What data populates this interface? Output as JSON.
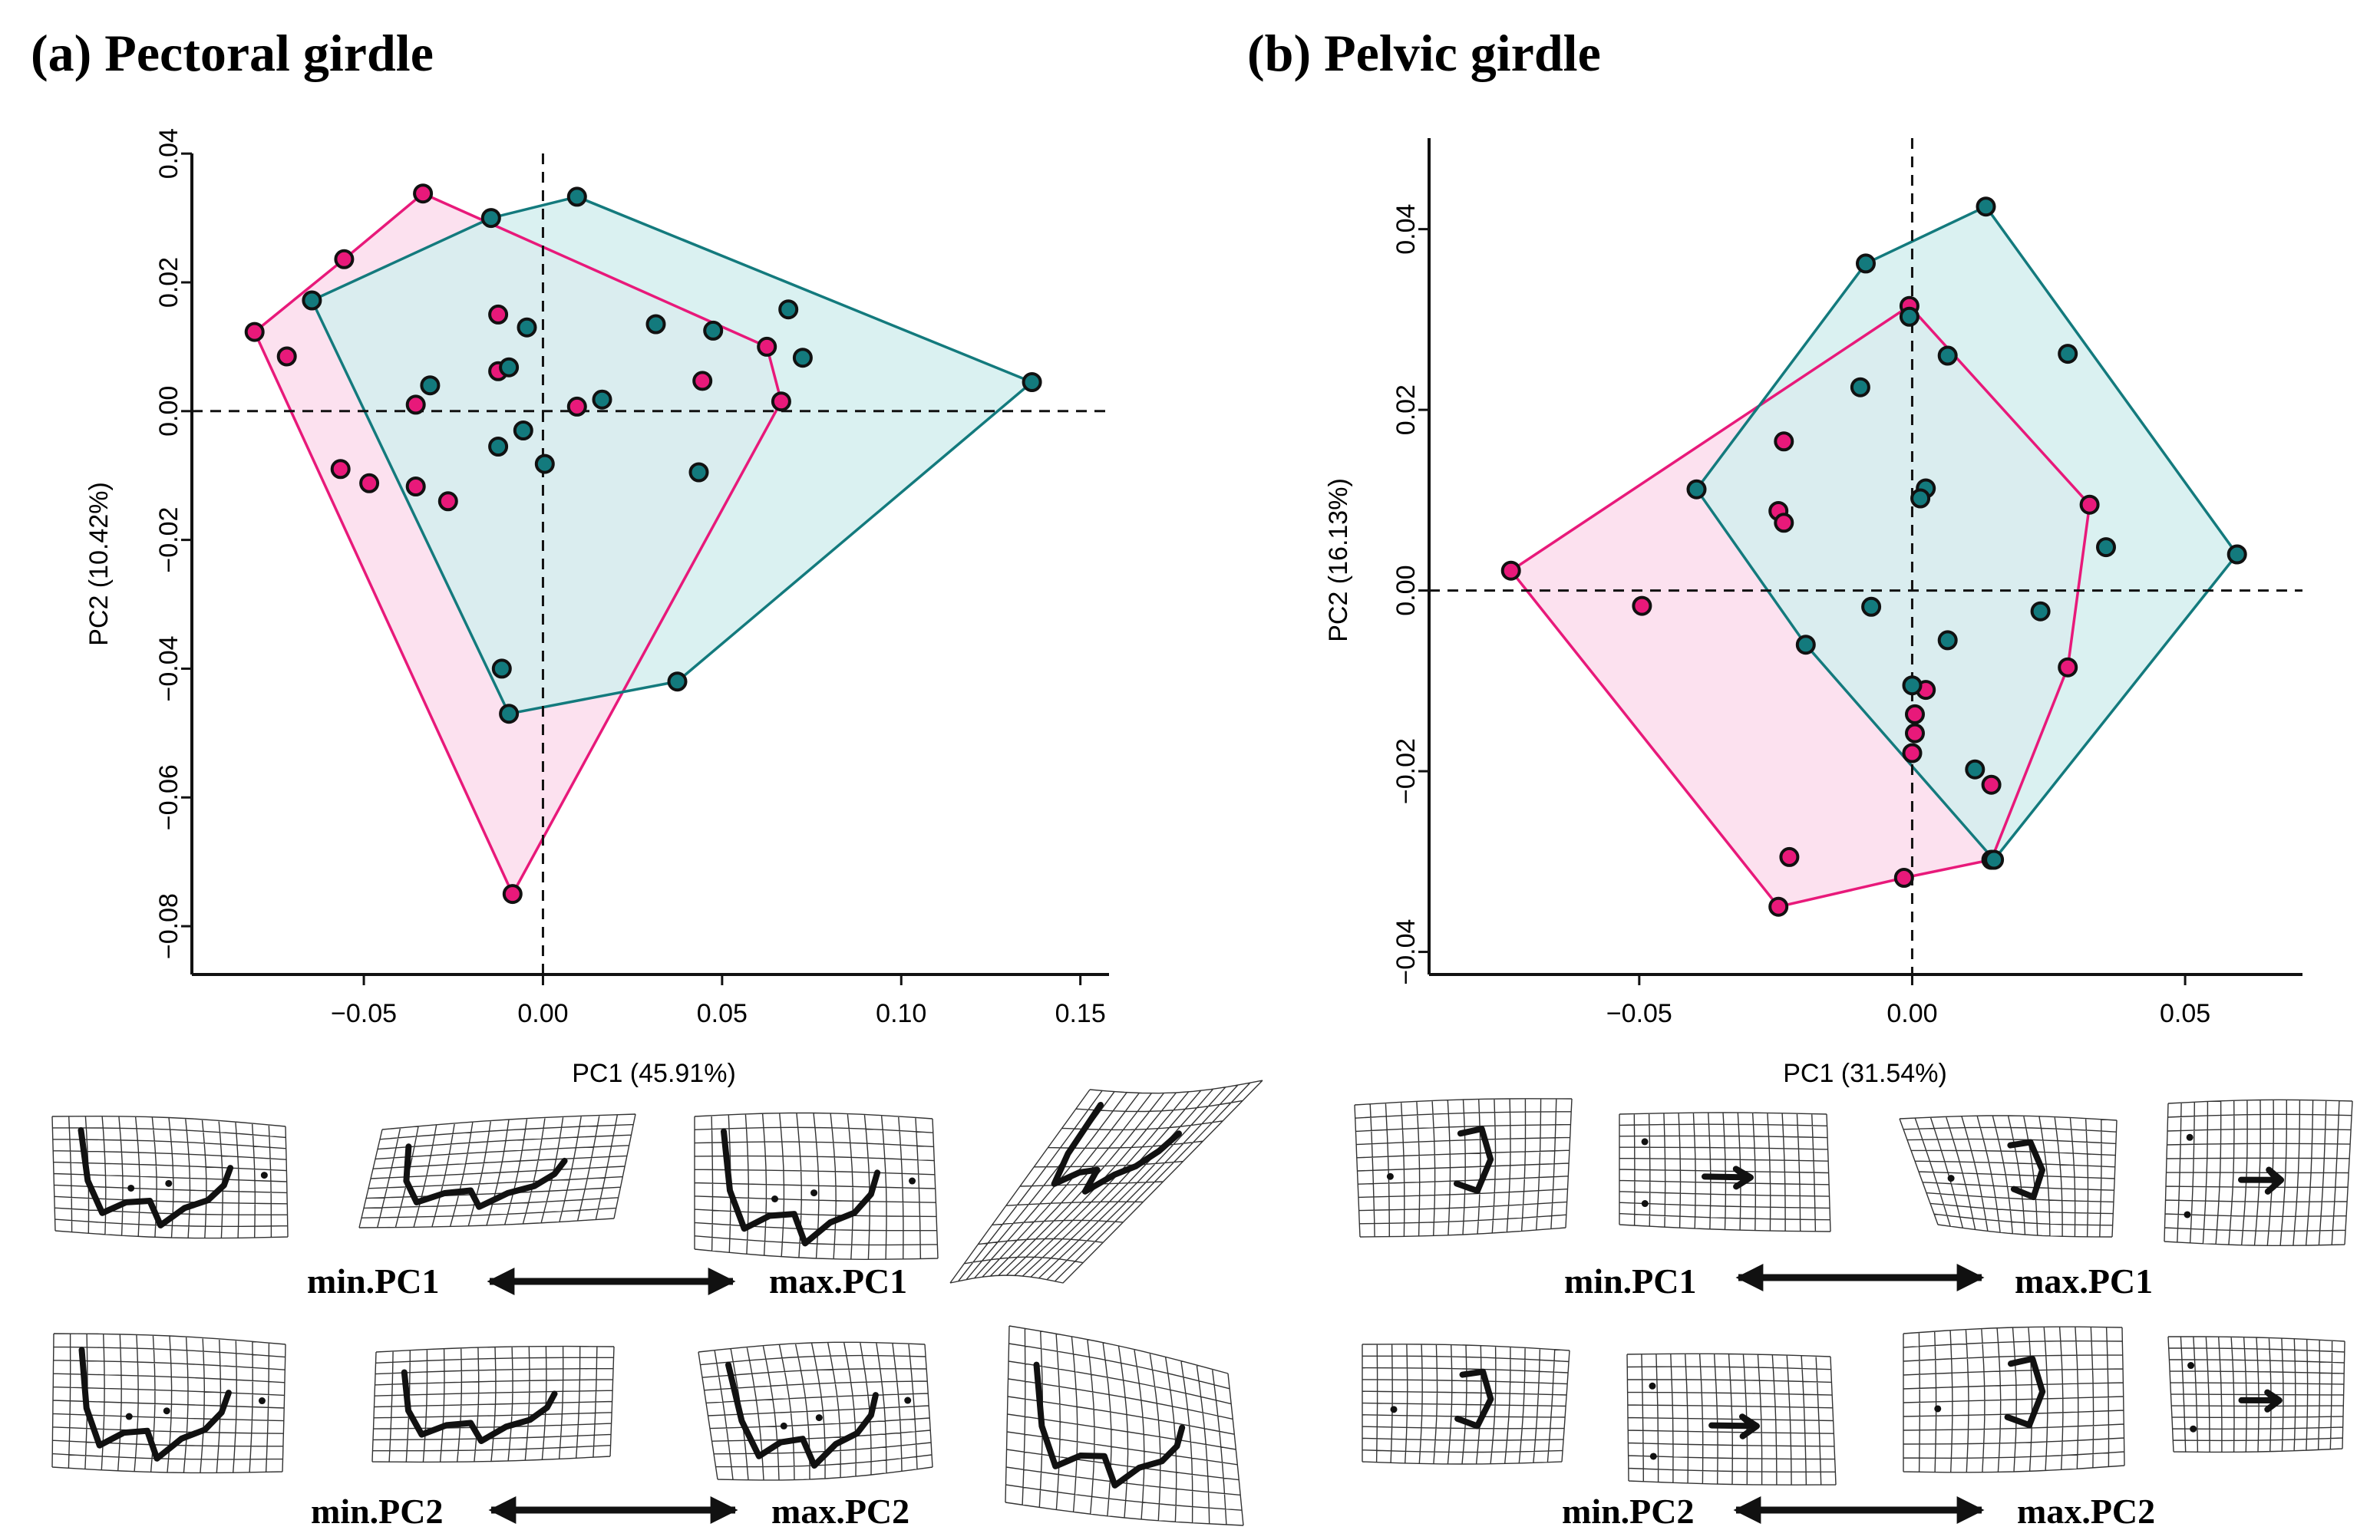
{
  "figure": {
    "bg": "#ffffff"
  },
  "colors": {
    "groupA_stroke": "#e8197a",
    "groupA_fill": "#fbdcec",
    "groupB_stroke": "#137a7d",
    "groupB_fill": "#d4efee",
    "point_outline": "#111111"
  },
  "chart_data": [
    {
      "id": "pectoral",
      "type": "scatter",
      "title": "(a) Pectoral girdle",
      "xlabel": "PC1 (45.91%)",
      "ylabel": "PC2 (10.42%)",
      "xlim": [
        -0.098,
        0.158
      ],
      "ylim": [
        -0.0875,
        0.043
      ],
      "xticks": [
        -0.05,
        0.0,
        0.05,
        0.1,
        0.15
      ],
      "xtick_labels": [
        "−0.05",
        "0.00",
        "0.05",
        "0.10",
        "0.15"
      ],
      "yticks": [
        -0.08,
        -0.06,
        -0.04,
        -0.02,
        0.0,
        0.02,
        0.04
      ],
      "ytick_labels": [
        "−0.08",
        "−0.06",
        "−0.04",
        "−0.02",
        "0.00",
        "0.02",
        "0.04"
      ],
      "grid": false,
      "reference_lines": {
        "x": 0,
        "y": 0,
        "style": "dashed"
      },
      "series": [
        {
          "name": "pink",
          "color": "#e8197a",
          "points": [
            [
              -0.0805,
              0.0123
            ],
            [
              -0.0715,
              0.0085
            ],
            [
              -0.0555,
              0.0236
            ],
            [
              -0.0335,
              0.0338
            ],
            [
              -0.0565,
              -0.009
            ],
            [
              -0.0485,
              -0.0112
            ],
            [
              -0.0355,
              0.001
            ],
            [
              -0.0355,
              -0.0117
            ],
            [
              -0.0265,
              -0.014
            ],
            [
              -0.0125,
              0.015
            ],
            [
              -0.0125,
              0.0062
            ],
            [
              0.0095,
              0.0007
            ],
            [
              0.0445,
              0.0047
            ],
            [
              0.0625,
              0.01
            ],
            [
              0.0665,
              0.0015
            ],
            [
              -0.0085,
              -0.075
            ]
          ],
          "hull": [
            [
              -0.0805,
              0.0123
            ],
            [
              -0.0555,
              0.0236
            ],
            [
              -0.0335,
              0.0338
            ],
            [
              0.0625,
              0.01
            ],
            [
              0.0665,
              0.0015
            ],
            [
              -0.0085,
              -0.075
            ]
          ]
        },
        {
          "name": "teal",
          "color": "#137a7d",
          "points": [
            [
              -0.0645,
              0.0172
            ],
            [
              -0.0145,
              0.03
            ],
            [
              0.0095,
              0.0333
            ],
            [
              -0.0045,
              0.013
            ],
            [
              -0.0095,
              0.0068
            ],
            [
              -0.0315,
              0.004
            ],
            [
              0.0165,
              0.0018
            ],
            [
              0.0315,
              0.0135
            ],
            [
              0.0475,
              0.0125
            ],
            [
              0.0685,
              0.0158
            ],
            [
              0.0725,
              0.0083
            ],
            [
              0.1365,
              0.0045
            ],
            [
              -0.0055,
              -0.003
            ],
            [
              -0.0125,
              -0.0055
            ],
            [
              0.0005,
              -0.0082
            ],
            [
              0.0435,
              -0.0095
            ],
            [
              -0.0115,
              -0.04
            ],
            [
              0.0375,
              -0.042
            ],
            [
              -0.0095,
              -0.047
            ]
          ],
          "hull": [
            [
              -0.0645,
              0.0172
            ],
            [
              -0.0145,
              0.03
            ],
            [
              0.0095,
              0.0333
            ],
            [
              0.1365,
              0.0045
            ],
            [
              0.0375,
              -0.042
            ],
            [
              -0.0095,
              -0.047
            ]
          ]
        }
      ],
      "warp_labels": {
        "pc1_min": "min.PC1",
        "pc1_max": "max.PC1",
        "pc2_min": "min.PC2",
        "pc2_max": "max.PC2"
      }
    },
    {
      "id": "pelvic",
      "type": "scatter",
      "title": "(b) Pelvic girdle",
      "xlabel": "PC1 (31.54%)",
      "ylabel": "PC2 (16.13%)",
      "xlim": [
        -0.0885,
        0.0715
      ],
      "ylim": [
        -0.0425,
        0.0505
      ],
      "xticks": [
        -0.05,
        0.0,
        0.05
      ],
      "xtick_labels": [
        "−0.05",
        "0.00",
        "0.05"
      ],
      "yticks": [
        -0.04,
        -0.02,
        0.0,
        0.02,
        0.04
      ],
      "ytick_labels": [
        "−0.04",
        "−0.02",
        "0.00",
        "0.02",
        "0.04"
      ],
      "grid": false,
      "reference_lines": {
        "x": 0,
        "y": 0,
        "style": "dashed"
      },
      "series": [
        {
          "name": "pink",
          "color": "#e8197a",
          "points": [
            [
              -0.0735,
              0.0022
            ],
            [
              -0.0495,
              -0.0017
            ],
            [
              -0.0235,
              0.0165
            ],
            [
              -0.0245,
              0.0088
            ],
            [
              -0.0235,
              0.0075
            ],
            [
              -0.0005,
              0.0315
            ],
            [
              0.0325,
              0.0095
            ],
            [
              0.0285,
              -0.0085
            ],
            [
              0.0025,
              -0.011
            ],
            [
              0.0005,
              -0.0137
            ],
            [
              0.0005,
              -0.0158
            ],
            [
              0.0,
              -0.018
            ],
            [
              0.0145,
              -0.0215
            ],
            [
              0.0145,
              -0.0298
            ],
            [
              -0.0225,
              -0.0295
            ],
            [
              -0.0015,
              -0.0318
            ],
            [
              -0.0245,
              -0.035
            ]
          ],
          "hull": [
            [
              -0.0735,
              0.0022
            ],
            [
              -0.0005,
              0.0315
            ],
            [
              0.0325,
              0.0095
            ],
            [
              0.0285,
              -0.0085
            ],
            [
              0.0145,
              -0.0298
            ],
            [
              -0.0015,
              -0.0318
            ],
            [
              -0.0245,
              -0.035
            ]
          ]
        },
        {
          "name": "teal",
          "color": "#137a7d",
          "points": [
            [
              -0.0085,
              0.0362
            ],
            [
              0.0135,
              0.0425
            ],
            [
              -0.0005,
              0.0303
            ],
            [
              0.0065,
              0.026
            ],
            [
              0.0285,
              0.0262
            ],
            [
              -0.0095,
              0.0225
            ],
            [
              0.0025,
              0.0113
            ],
            [
              0.0015,
              0.0102
            ],
            [
              -0.0395,
              0.0112
            ],
            [
              0.0355,
              0.0048
            ],
            [
              0.0595,
              0.004
            ],
            [
              -0.0075,
              -0.0018
            ],
            [
              0.0235,
              -0.0023
            ],
            [
              0.0065,
              -0.0055
            ],
            [
              -0.0195,
              -0.006
            ],
            [
              0.0,
              -0.0105
            ],
            [
              0.0115,
              -0.0198
            ],
            [
              0.015,
              -0.0298
            ]
          ],
          "hull": [
            [
              -0.0085,
              0.0362
            ],
            [
              0.0135,
              0.0425
            ],
            [
              0.0595,
              0.004
            ],
            [
              0.015,
              -0.0298
            ],
            [
              -0.0195,
              -0.006
            ],
            [
              -0.0395,
              0.0112
            ]
          ]
        }
      ],
      "warp_labels": {
        "pc1_min": "min.PC1",
        "pc1_max": "max.PC1",
        "pc2_min": "min.PC2",
        "pc2_max": "max.PC2"
      }
    }
  ]
}
